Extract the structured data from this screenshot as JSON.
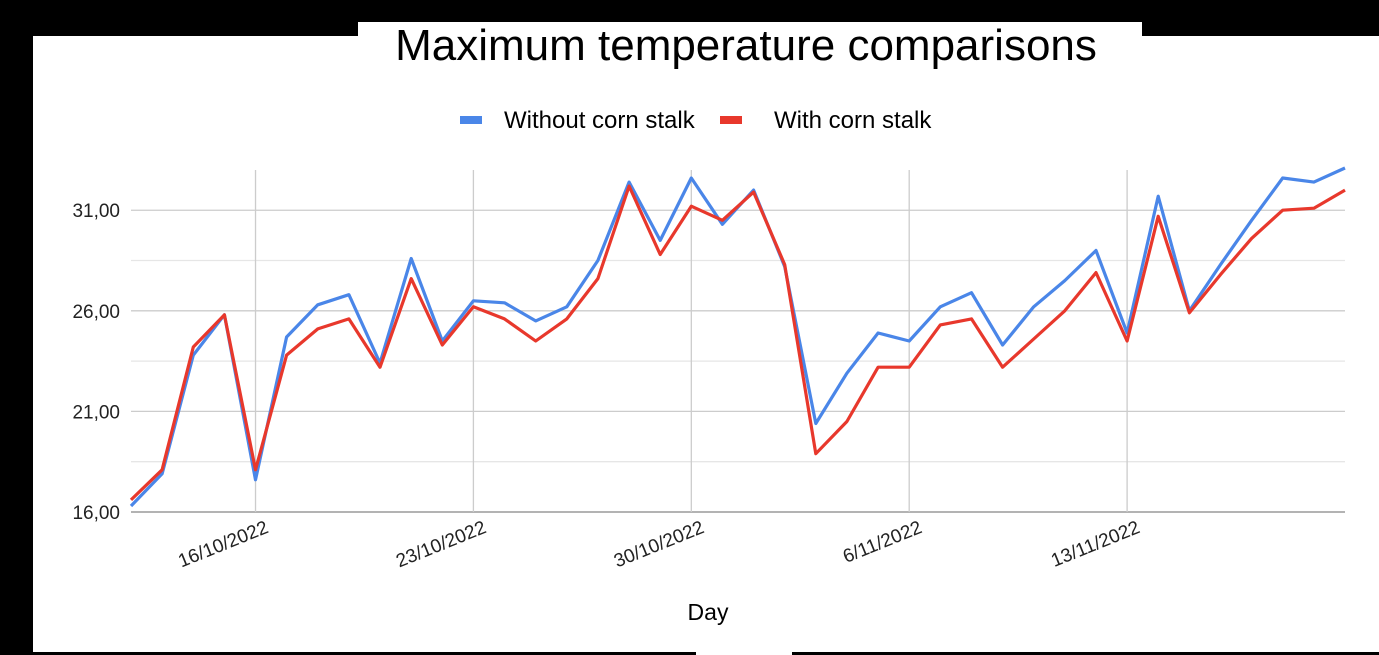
{
  "chart_data": {
    "type": "line",
    "title": "Maximum temperature comparisons",
    "xlabel": "Day",
    "ylabel": "",
    "ylim": [
      16,
      33
    ],
    "yticks": [
      "16,00",
      "21,00",
      "26,00",
      "31,00"
    ],
    "xtick_labels": [
      "16/10/2022",
      "23/10/2022",
      "30/10/2022",
      "6/11/2022",
      "13/11/2022"
    ],
    "x_start": "12/10/2022",
    "x_end": "18/11/2022",
    "grid": true,
    "legend_position": "top",
    "series": [
      {
        "name": "Without corn stalk",
        "color": "#4a86e8",
        "values": [
          16.3,
          17.9,
          23.8,
          25.8,
          17.6,
          24.7,
          26.3,
          26.8,
          23.4,
          28.6,
          24.5,
          26.5,
          26.4,
          25.5,
          26.2,
          28.5,
          32.4,
          29.5,
          32.6,
          30.3,
          32.0,
          28.2,
          20.4,
          22.9,
          24.9,
          24.5,
          26.2,
          26.9,
          24.3,
          26.2,
          27.5,
          29.0,
          24.9,
          31.7,
          26.0,
          28.3,
          30.5,
          32.6,
          32.4,
          33.1
        ]
      },
      {
        "name": "With corn stalk",
        "color": "#e8382c",
        "values": [
          16.6,
          18.1,
          24.2,
          25.8,
          18.1,
          23.8,
          25.1,
          25.6,
          23.2,
          27.6,
          24.3,
          26.2,
          25.6,
          24.5,
          25.6,
          27.6,
          32.2,
          28.8,
          31.2,
          30.5,
          31.9,
          28.3,
          18.9,
          20.5,
          23.2,
          23.2,
          25.3,
          25.6,
          23.2,
          24.6,
          26.0,
          27.9,
          24.5,
          30.7,
          25.9,
          27.8,
          29.6,
          31.0,
          31.1,
          32.0
        ]
      }
    ]
  }
}
